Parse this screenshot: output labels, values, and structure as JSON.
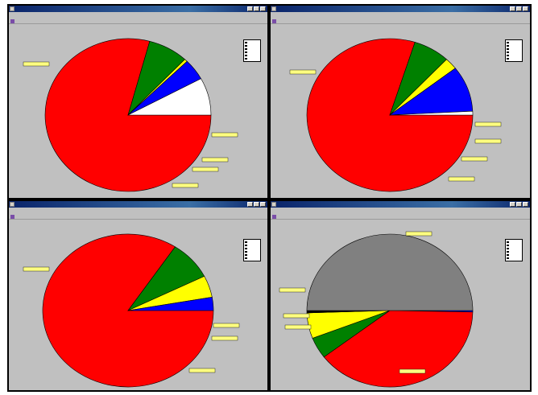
{
  "colors": {
    "red": "#ff0000",
    "green": "#008000",
    "yellow": "#ffff00",
    "blue": "#0000ff",
    "white": "#ffffff",
    "grey": "#808080",
    "label_bg": "#ffff80",
    "titlebar": "#0a246a",
    "window_bg": "#c0c0c0"
  },
  "panes": [
    {
      "id": "top-left",
      "window_title": "",
      "menu": [],
      "legend_items": [
        {
          "label": "",
          "color": "#ff0000"
        },
        {
          "label": "",
          "color": "#008000"
        },
        {
          "label": "",
          "color": "#ffff00"
        },
        {
          "label": "",
          "color": "#0000ff"
        },
        {
          "label": "",
          "color": "#ffffff"
        },
        {
          "label": "",
          "color": "#808080"
        }
      ],
      "chart_data": {
        "type": "pie",
        "slices": [
          {
            "label": "",
            "value": 79.2,
            "color": "#ff0000"
          },
          {
            "label": "",
            "value": 7.8,
            "color": "#008000"
          },
          {
            "label": "",
            "value": 0.6,
            "color": "#ffff00"
          },
          {
            "label": "",
            "value": 4.5,
            "color": "#0000ff"
          },
          {
            "label": "",
            "value": 7.9,
            "color": "#ffffff"
          }
        ]
      }
    },
    {
      "id": "top-right",
      "window_title": "",
      "menu": [],
      "legend_items": [
        {
          "label": "",
          "color": "#ff0000"
        },
        {
          "label": "",
          "color": "#008000"
        },
        {
          "label": "",
          "color": "#ffff00"
        },
        {
          "label": "",
          "color": "#0000ff"
        },
        {
          "label": "",
          "color": "#ffffff"
        },
        {
          "label": "",
          "color": "#808080"
        }
      ],
      "chart_data": {
        "type": "pie",
        "slices": [
          {
            "label": "",
            "value": 79.9,
            "color": "#ff0000"
          },
          {
            "label": "",
            "value": 7.1,
            "color": "#008000"
          },
          {
            "label": "",
            "value": 2.5,
            "color": "#ffff00"
          },
          {
            "label": "",
            "value": 9.7,
            "color": "#0000ff"
          },
          {
            "label": "",
            "value": 0.8,
            "color": "#ffffff"
          }
        ]
      }
    },
    {
      "id": "bottom-left",
      "window_title": "",
      "menu": [],
      "legend_items": [
        {
          "label": "",
          "color": "#ff0000"
        },
        {
          "label": "",
          "color": "#008000"
        },
        {
          "label": "",
          "color": "#ffff00"
        },
        {
          "label": "",
          "color": "#0000ff"
        },
        {
          "label": "",
          "color": "#ffffff"
        },
        {
          "label": "",
          "color": "#808080"
        }
      ],
      "chart_data": {
        "type": "pie",
        "slices": [
          {
            "label": "",
            "value": 84.3,
            "color": "#ff0000"
          },
          {
            "label": "",
            "value": 8.3,
            "color": "#008000"
          },
          {
            "label": "",
            "value": 4.6,
            "color": "#ffff00"
          },
          {
            "label": "",
            "value": 2.8,
            "color": "#0000ff"
          }
        ]
      }
    },
    {
      "id": "bottom-right",
      "window_title": "",
      "menu": [],
      "legend_items": [
        {
          "label": "",
          "color": "#ff0000"
        },
        {
          "label": "",
          "color": "#008000"
        },
        {
          "label": "",
          "color": "#ffff00"
        },
        {
          "label": "",
          "color": "#0000ff"
        },
        {
          "label": "",
          "color": "#ffffff"
        },
        {
          "label": "",
          "color": "#808080"
        }
      ],
      "chart_data": {
        "type": "pie",
        "slices": [
          {
            "label": "",
            "value": 0.3,
            "color": "#0000ff"
          },
          {
            "label": "",
            "value": 39.3,
            "color": "#ff0000"
          },
          {
            "label": "",
            "value": 4.5,
            "color": "#008000"
          },
          {
            "label": "",
            "value": 5.4,
            "color": "#ffff00"
          },
          {
            "label": "",
            "value": 0.5,
            "color": "#000000"
          },
          {
            "label": "",
            "value": 50.0,
            "color": "#808080"
          }
        ]
      }
    }
  ]
}
